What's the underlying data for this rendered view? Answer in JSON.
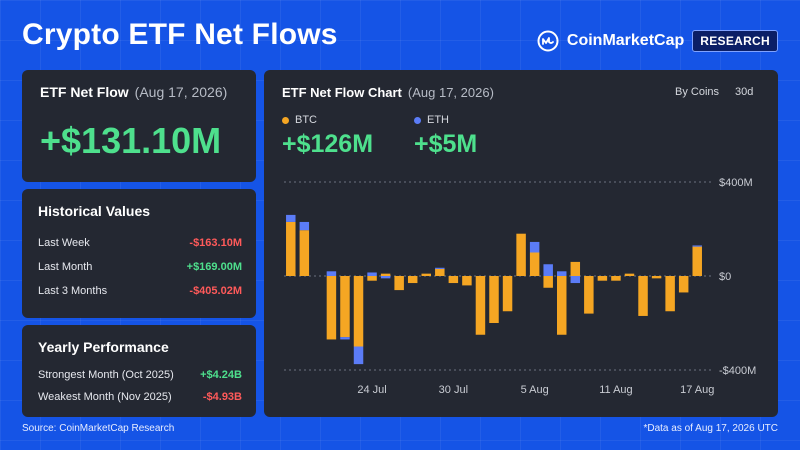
{
  "header": {
    "title": "Crypto ETF Net Flows",
    "brand_name": "CoinMarketCap",
    "brand_tag": "RESEARCH"
  },
  "net_flow_card": {
    "label": "ETF Net Flow",
    "date": "(Aug 17, 2026)",
    "value": "+$131.10M"
  },
  "historical": {
    "title": "Historical Values",
    "rows": [
      {
        "label": "Last Week",
        "value": "-$163.10M"
      },
      {
        "label": "Last Month",
        "value": "+$169.00M"
      },
      {
        "label": "Last 3 Months",
        "value": "-$405.02M"
      }
    ]
  },
  "yearly": {
    "title": "Yearly Performance",
    "rows": [
      {
        "label": "Strongest Month (Oct 2025)",
        "value": "+$4.24B"
      },
      {
        "label": "Weakest Month (Nov 2025)",
        "value": "-$4.93B"
      }
    ]
  },
  "chart_card": {
    "title": "ETF Net Flow Chart",
    "date": "(Aug 17, 2026)",
    "control_group": "By Coins",
    "control_period": "30d",
    "legend": [
      {
        "name": "BTC",
        "value": "+$126M",
        "color": "#f5a623"
      },
      {
        "name": "ETH",
        "value": "+$5M",
        "color": "#5b7cf7"
      }
    ]
  },
  "footer": {
    "source": "Source: CoinMarketCap Research",
    "note": "*Data as of Aug 17, 2026 UTC"
  },
  "chart_data": {
    "type": "bar",
    "stacked": true,
    "x": [
      "Jul 18",
      "Jul 19",
      "Jul 20",
      "Jul 21",
      "Jul 22",
      "Jul 23",
      "Jul 24",
      "Jul 25",
      "Jul 26",
      "Jul 27",
      "Jul 28",
      "Jul 29",
      "Jul 30",
      "Jul 31",
      "Aug 1",
      "Aug 2",
      "Aug 3",
      "Aug 4",
      "Aug 5",
      "Aug 6",
      "Aug 7",
      "Aug 8",
      "Aug 9",
      "Aug 10",
      "Aug 11",
      "Aug 12",
      "Aug 13",
      "Aug 14",
      "Aug 15",
      "Aug 16",
      "Aug 17"
    ],
    "x_tick_labels": [
      "24 Jul",
      "30 Jul",
      "5 Aug",
      "11 Aug",
      "17 Aug"
    ],
    "series": [
      {
        "name": "BTC",
        "color": "#f5a623",
        "values": [
          230,
          195,
          null,
          -270,
          -260,
          -300,
          -20,
          10,
          -60,
          -30,
          10,
          30,
          -30,
          -40,
          -250,
          -200,
          -150,
          180,
          100,
          -50,
          -250,
          60,
          -160,
          -20,
          -20,
          10,
          -170,
          -10,
          -150,
          -70,
          125
        ]
      },
      {
        "name": "ETH",
        "color": "#5b7cf7",
        "values": [
          30,
          35,
          null,
          20,
          -10,
          -75,
          15,
          -10,
          0,
          0,
          0,
          5,
          0,
          0,
          0,
          0,
          0,
          0,
          45,
          50,
          20,
          -30,
          0,
          0,
          0,
          0,
          0,
          0,
          0,
          0,
          5
        ]
      }
    ],
    "y_tick_labels": [
      "$400M",
      "$0",
      "-$400M"
    ],
    "ylim": [
      -400,
      400
    ],
    "grid": true
  }
}
